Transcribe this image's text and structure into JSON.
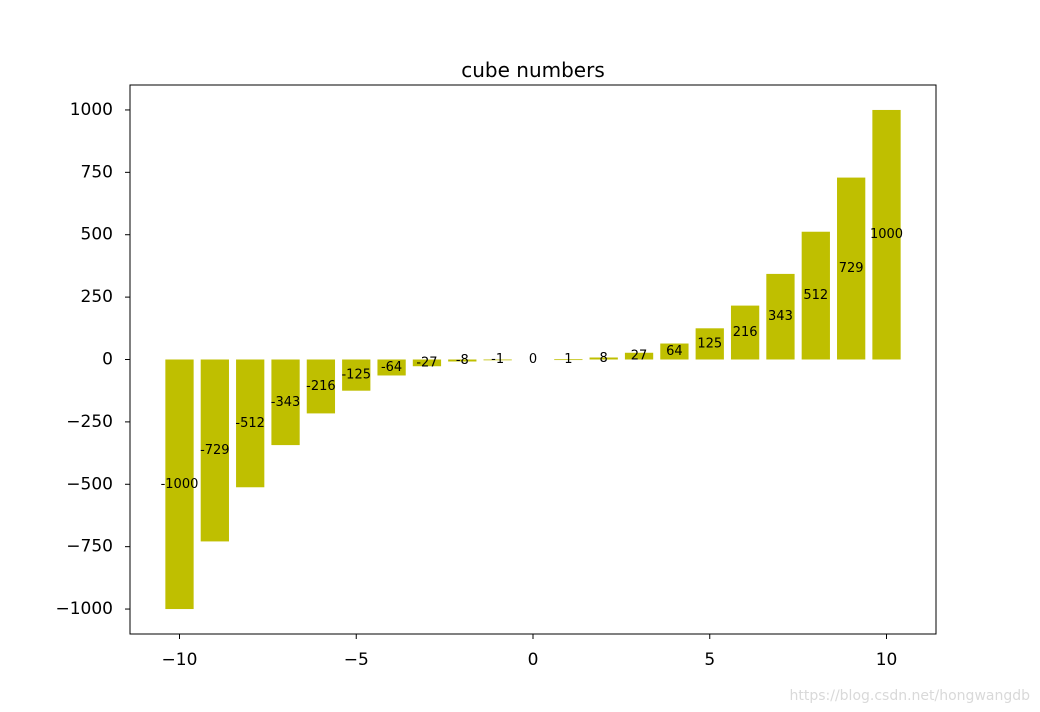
{
  "chart_data": {
    "type": "bar",
    "title": "cube numbers",
    "xlabel": "",
    "ylabel": "",
    "x": [
      -10,
      -9,
      -8,
      -7,
      -6,
      -5,
      -4,
      -3,
      -2,
      -1,
      0,
      1,
      2,
      3,
      4,
      5,
      6,
      7,
      8,
      9,
      10
    ],
    "values": [
      -1000,
      -729,
      -512,
      -343,
      -216,
      -125,
      -64,
      -27,
      -8,
      -1,
      0,
      1,
      8,
      27,
      64,
      125,
      216,
      343,
      512,
      729,
      1000
    ],
    "bar_labels": [
      "-1000",
      "-729",
      "-512",
      "-343",
      "-216",
      "-125",
      "-64",
      "-27",
      "-8",
      "-1",
      "0",
      "1",
      "8",
      "27",
      "64",
      "125",
      "216",
      "343",
      "512",
      "729",
      "1000"
    ],
    "xlim": [
      -11.4,
      11.4
    ],
    "ylim": [
      -1100,
      1100
    ],
    "xticks": [
      -10,
      -5,
      0,
      5,
      10
    ],
    "xtick_labels": [
      "−10",
      "−5",
      "0",
      "5",
      "10"
    ],
    "yticks": [
      1000,
      750,
      500,
      250,
      0,
      -250,
      -500,
      -750,
      -1000
    ],
    "ytick_labels": [
      "1000",
      "750",
      "500",
      "250",
      "0",
      "−250",
      "−500",
      "−750",
      "−1000"
    ],
    "bar_color": "#bfbf00",
    "grid": false
  },
  "watermark": "https://blog.csdn.net/hongwangdb"
}
